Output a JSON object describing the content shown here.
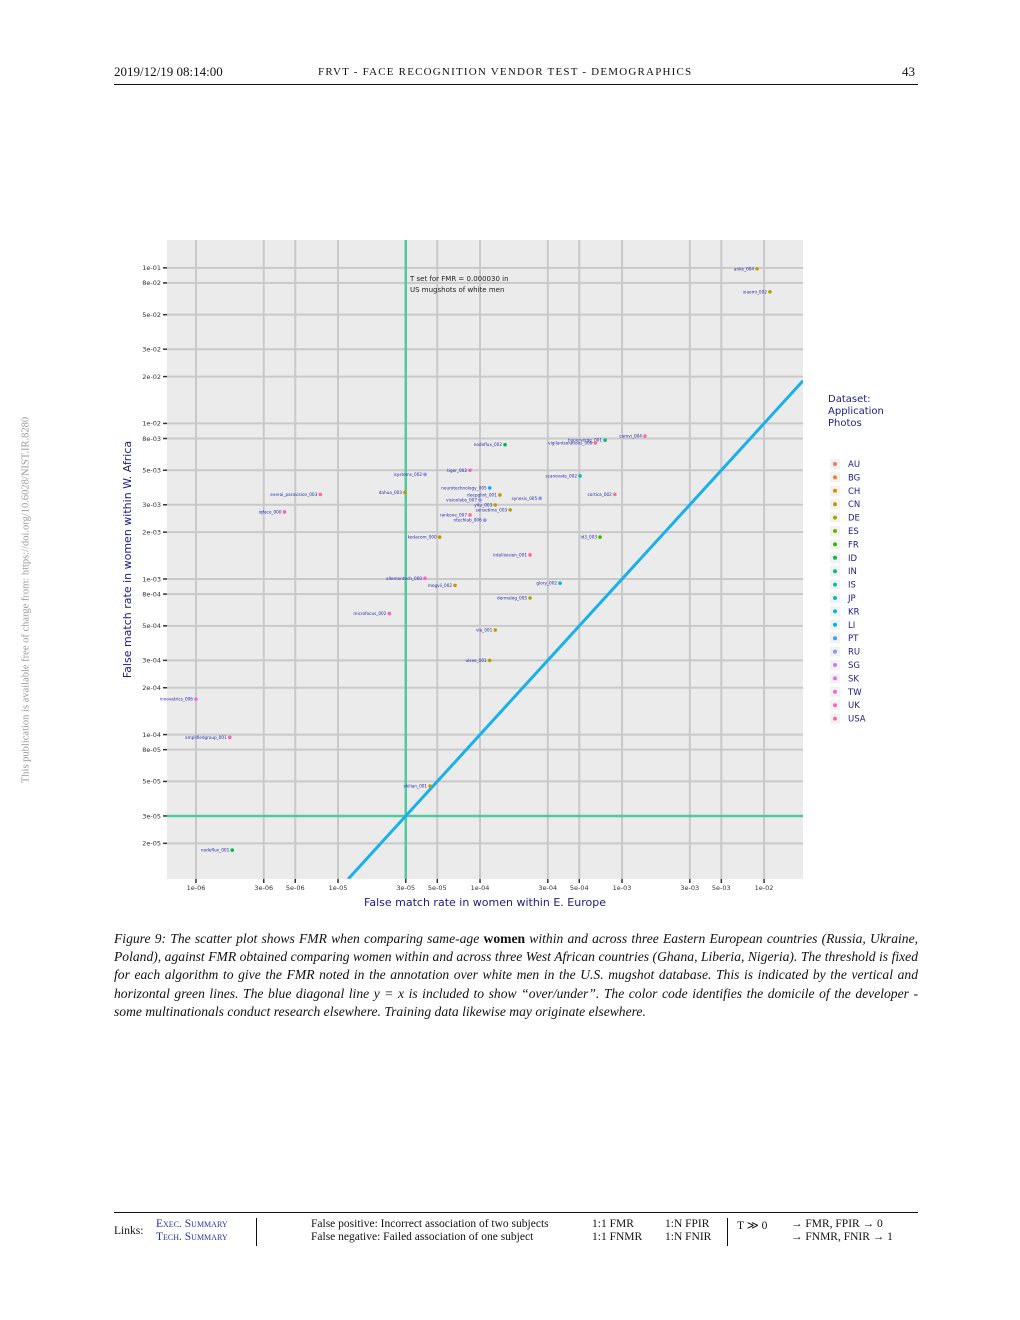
{
  "header": {
    "date": "2019/12/19  08:14:00",
    "title": "FRVT - FACE RECOGNITION VENDOR TEST - DEMOGRAPHICS",
    "page": "43"
  },
  "side_note": "This publication is available free of charge from: https://doi.org/10.6028/NIST.IR.8280",
  "chart_data": {
    "type": "scatter",
    "log_x": true,
    "log_y": true,
    "grid": true,
    "x_label": "False match rate in women within E. Europe",
    "y_label": "False match rate in women within W. Africa",
    "annotation": [
      "T set for FMR = 0.000030 in",
      "US mugshots of white men"
    ],
    "threshold": 3e-05,
    "xlim": [
      6.25e-07,
      0.0188
    ],
    "ylim": [
      1.18e-05,
      0.151
    ],
    "xticks": [
      {
        "value": 1e-06,
        "label": "1e-06"
      },
      {
        "value": 3e-06,
        "label": "3e-06"
      },
      {
        "value": 5e-06,
        "label": "5e-06"
      },
      {
        "value": 1e-05,
        "label": "1e-05"
      },
      {
        "value": 3e-05,
        "label": "3e-05"
      },
      {
        "value": 5e-05,
        "label": "5e-05"
      },
      {
        "value": 0.0001,
        "label": "1e-04"
      },
      {
        "value": 0.0003,
        "label": "3e-04"
      },
      {
        "value": 0.0005,
        "label": "5e-04"
      },
      {
        "value": 0.001,
        "label": "1e-03"
      },
      {
        "value": 0.003,
        "label": "3e-03"
      },
      {
        "value": 0.005,
        "label": "5e-03"
      },
      {
        "value": 0.01,
        "label": "1e-02"
      }
    ],
    "yticks": [
      {
        "value": 2e-05,
        "label": "2e-05"
      },
      {
        "value": 3e-05,
        "label": "3e-05"
      },
      {
        "value": 5e-05,
        "label": "5e-05"
      },
      {
        "value": 8e-05,
        "label": "8e-05"
      },
      {
        "value": 0.0001,
        "label": "1e-04"
      },
      {
        "value": 0.0002,
        "label": "2e-04"
      },
      {
        "value": 0.0003,
        "label": "3e-04"
      },
      {
        "value": 0.0005,
        "label": "5e-04"
      },
      {
        "value": 0.0008,
        "label": "8e-04"
      },
      {
        "value": 0.001,
        "label": "1e-03"
      },
      {
        "value": 0.002,
        "label": "2e-03"
      },
      {
        "value": 0.003,
        "label": "3e-03"
      },
      {
        "value": 0.005,
        "label": "5e-03"
      },
      {
        "value": 0.008,
        "label": "8e-03"
      },
      {
        "value": 0.01,
        "label": "1e-02"
      },
      {
        "value": 0.02,
        "label": "2e-02"
      },
      {
        "value": 0.03,
        "label": "3e-02"
      },
      {
        "value": 0.05,
        "label": "5e-02"
      },
      {
        "value": 0.08,
        "label": "8e-02"
      },
      {
        "value": 0.1,
        "label": "1e-01"
      }
    ],
    "legend": {
      "title": [
        "Dataset:",
        "Application",
        "Photos"
      ],
      "entries": [
        {
          "name": "AU",
          "color": "#f8766d"
        },
        {
          "name": "BG",
          "color": "#ea8331"
        },
        {
          "name": "CH",
          "color": "#d89000"
        },
        {
          "name": "CN",
          "color": "#c09b00"
        },
        {
          "name": "DE",
          "color": "#a3a500"
        },
        {
          "name": "ES",
          "color": "#7cae00"
        },
        {
          "name": "FR",
          "color": "#39b600"
        },
        {
          "name": "ID",
          "color": "#00bb4e"
        },
        {
          "name": "IN",
          "color": "#00bf7d"
        },
        {
          "name": "IS",
          "color": "#00c1a3"
        },
        {
          "name": "JP",
          "color": "#00bfc4"
        },
        {
          "name": "KR",
          "color": "#00bae0"
        },
        {
          "name": "LI",
          "color": "#00b0f6"
        },
        {
          "name": "PT",
          "color": "#35a2ff"
        },
        {
          "name": "RU",
          "color": "#9590ff"
        },
        {
          "name": "SG",
          "color": "#c77cff"
        },
        {
          "name": "SK",
          "color": "#e76bf3"
        },
        {
          "name": "TW",
          "color": "#fa62db"
        },
        {
          "name": "UK",
          "color": "#ff62bc"
        },
        {
          "name": "USA",
          "color": "#ff6c91"
        }
      ]
    },
    "points": [
      {
        "label": "anke_004",
        "x": 0.00893,
        "y": 0.0985,
        "group": "CN"
      },
      {
        "label": "xiaomi_002",
        "x": 0.011,
        "y": 0.0701,
        "group": "CN"
      },
      {
        "label": "camvi_004",
        "x": 0.00145,
        "y": 0.0083,
        "group": "USA"
      },
      {
        "label": "hyperverge_001",
        "x": 0.00076,
        "y": 0.0078,
        "group": "IN"
      },
      {
        "label": "nodeflux_002",
        "x": 0.00015,
        "y": 0.0073,
        "group": "ID"
      },
      {
        "label": "everai_paravision_003",
        "x": 7.5e-06,
        "y": 0.0035,
        "group": "USA"
      },
      {
        "label": "iqface_000",
        "x": 4.2e-06,
        "y": 0.0027,
        "group": "UK"
      },
      {
        "label": "innovatrics_006",
        "x": 1e-06,
        "y": 0.000169,
        "group": "SK"
      },
      {
        "label": "amplifiedgroup_001",
        "x": 1.73e-06,
        "y": 9.6e-05,
        "group": "UK"
      },
      {
        "label": "nodeflux_001",
        "x": 1.8e-06,
        "y": 1.81e-05,
        "group": "ID"
      },
      {
        "label": "shilian_001",
        "x": 4.45e-05,
        "y": 4.67e-05,
        "group": "CN"
      },
      {
        "label": "microfocus_002",
        "x": 2.3e-05,
        "y": 0.0006,
        "group": "UK"
      },
      {
        "label": "allemantech_000",
        "x": 4.1e-05,
        "y": 0.00101,
        "group": "TW"
      },
      {
        "label": "ulsee_001",
        "x": 0.000117,
        "y": 0.0003,
        "group": "CN"
      },
      {
        "label": "glory_002",
        "x": 0.000366,
        "y": 0.00094,
        "group": "JP"
      },
      {
        "label": "tiger_002",
        "x": 8.5e-05,
        "y": 0.005,
        "group": "UK"
      },
      {
        "label": "cortica_002",
        "x": 0.00089,
        "y": 0.0035,
        "group": "USA"
      },
      {
        "label": "id3_003",
        "x": 0.0007,
        "y": 0.00186,
        "group": "FR"
      },
      {
        "label": "dahua_003",
        "x": 2.96e-05,
        "y": 0.0036,
        "group": "CN"
      },
      {
        "label": "isystems_002",
        "x": 4.1e-05,
        "y": 0.0047,
        "group": "RU"
      },
      {
        "label": "kedacom_000",
        "x": 5.2e-05,
        "y": 0.00186,
        "group": "CN"
      },
      {
        "label": "vigilantsolutions_006",
        "x": 0.00065,
        "y": 0.0075,
        "group": "USA"
      },
      {
        "label": "scanovate_002",
        "x": 0.000506,
        "y": 0.0046,
        "group": "IS"
      },
      {
        "label": "dermalog_005",
        "x": 0.000225,
        "y": 0.000755,
        "group": "DE"
      },
      {
        "label": "neurotechnology_005",
        "x": 0.000117,
        "y": 0.00385,
        "group": "LI"
      },
      {
        "label": "intellivision_001",
        "x": 0.000225,
        "y": 0.00143,
        "group": "USA"
      },
      {
        "label": "visionlabs_007",
        "x": 0.0001,
        "y": 0.00322,
        "group": "RU"
      },
      {
        "label": "megvii_002",
        "x": 6.67e-05,
        "y": 0.00091,
        "group": "CN"
      },
      {
        "label": "via_001",
        "x": 0.000128,
        "y": 0.00047,
        "group": "CN"
      },
      {
        "label": "synesis_005",
        "x": 0.000265,
        "y": 0.0033,
        "group": "RU"
      },
      {
        "label": "yitu_003",
        "x": 0.000128,
        "y": 0.00299,
        "group": "CN"
      },
      {
        "label": "sensetime_003",
        "x": 0.000163,
        "y": 0.00278,
        "group": "CN"
      },
      {
        "label": "rankone_007",
        "x": 8.5e-05,
        "y": 0.00258,
        "group": "USA"
      },
      {
        "label": "ntechlab_006",
        "x": 0.000108,
        "y": 0.00239,
        "group": "RU"
      },
      {
        "label": "deepglint_001",
        "x": 0.000138,
        "y": 0.00347,
        "group": "CN"
      }
    ]
  },
  "caption": {
    "before": "Figure 9: The scatter plot shows FMR when comparing same-age ",
    "bold": "women",
    "after": " within and across three Eastern European countries (Russia, Ukraine, Poland), against FMR obtained comparing women within and across three West African countries (Ghana, Liberia, Nigeria). The threshold is fixed for each algorithm to give the FMR noted in the annotation over white men in the U.S. mugshot database. This is indicated by the vertical and horizontal green lines. The blue diagonal line y = x is included to show “over/under”. The color code identifies the domicile of the developer - some multinationals conduct research elsewhere. Training data likewise may originate elsewhere."
  },
  "footer": {
    "links_label": "Links:",
    "links": [
      "Exec. Summary",
      "Tech. Summary"
    ],
    "definitions": [
      "False positive: Incorrect association of two subjects",
      "False negative: Failed association of one subject"
    ],
    "one_to_one": [
      "1:1 FMR",
      "1:1 FNMR"
    ],
    "one_to_many": [
      "1:N FPIR",
      "1:N FNIR"
    ],
    "threshold": "T ≫ 0",
    "limits": [
      "→ FMR, FPIR → 0",
      "→ FNMR, FNIR → 1"
    ]
  }
}
